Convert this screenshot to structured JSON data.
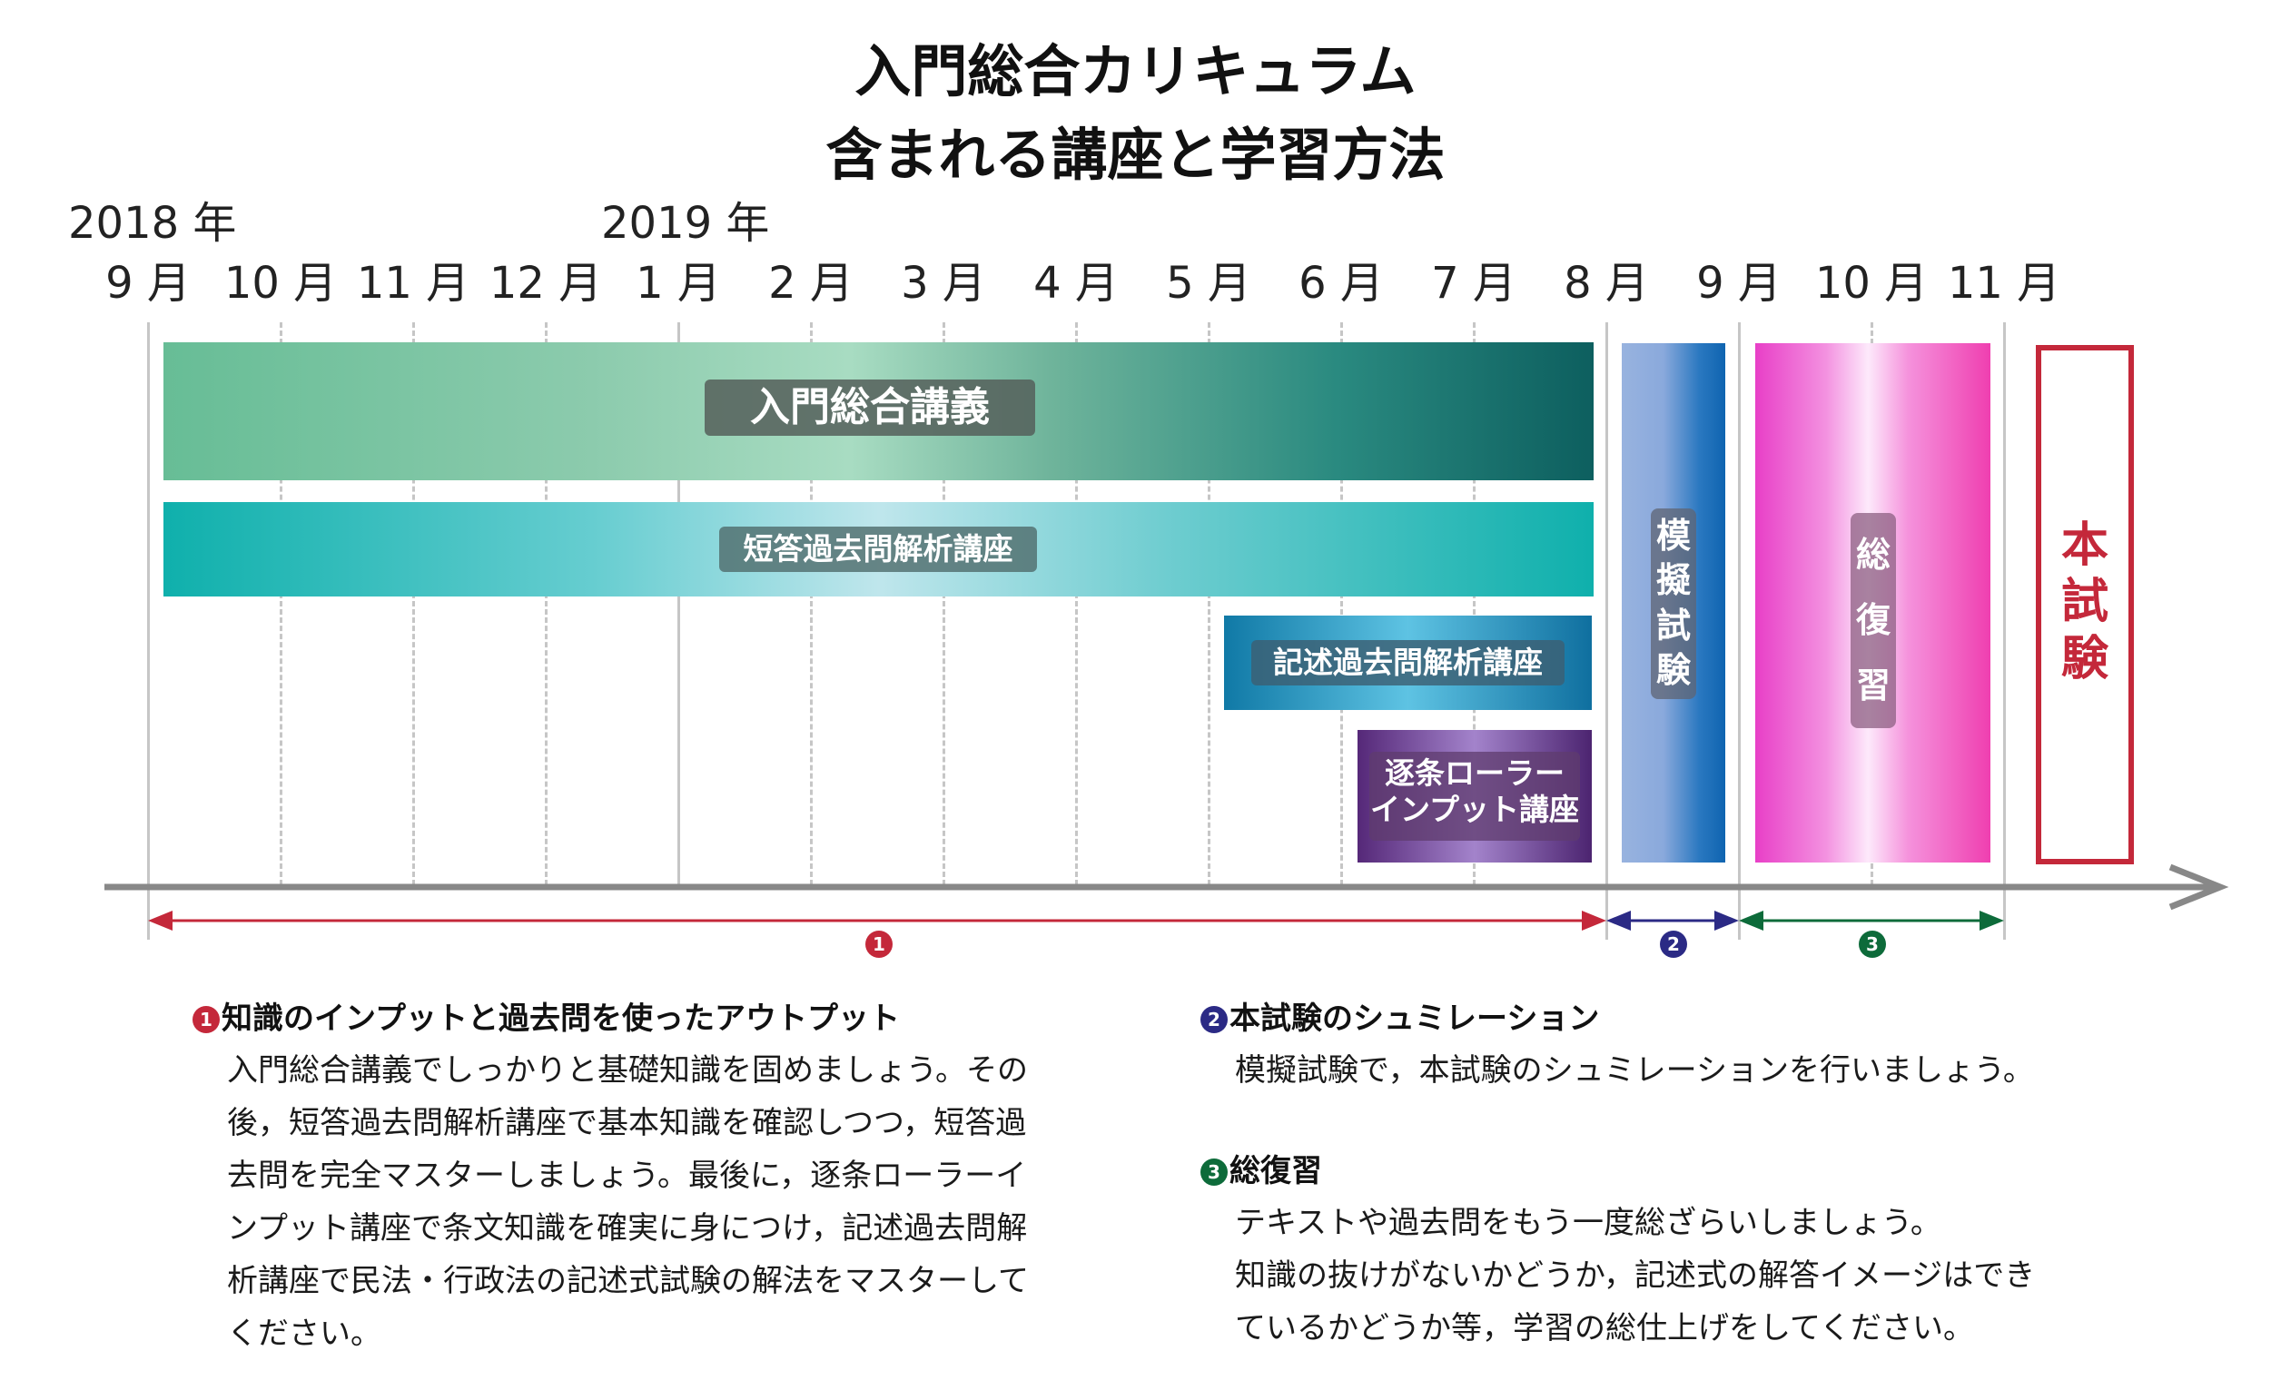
{
  "title": {
    "line1": "入門総合カリキュラム",
    "line2": "含まれる講座と学習方法"
  },
  "timeline": {
    "years": [
      "2018 年",
      "2019 年"
    ],
    "months": [
      "9 月",
      "10 月",
      "11 月",
      "12 月",
      "1 月",
      "2 月",
      "3 月",
      "4 月",
      "5 月",
      "6 月",
      "7 月",
      "8 月",
      "9 月",
      "10 月",
      "11 月"
    ]
  },
  "courses": {
    "intro": "入門総合講義",
    "short_answer": "短答過去問解析講座",
    "descriptive": "記述過去問解析講座",
    "roller": [
      "逐条ローラー",
      "インプット講座"
    ]
  },
  "phases": {
    "mock": [
      "模",
      "擬",
      "試",
      "験"
    ],
    "review": [
      "総",
      "復",
      "習"
    ],
    "exam": [
      "本",
      "試",
      "験"
    ]
  },
  "badges": {
    "one": "1",
    "two": "2",
    "three": "3"
  },
  "colors": {
    "phase1": "#c4283a",
    "phase2": "#2b2a85",
    "phase3": "#0d6b3a",
    "exam": "#c4283a"
  },
  "sections": {
    "s1": {
      "heading": "知識のインプットと過去問を使ったアウトプット",
      "lines": [
        "入門総合講義でしっかりと基礎知識を固めましょう。その",
        "後，短答過去問解析講座で基本知識を確認しつつ，短答過",
        "去問を完全マスターしましょう。最後に，逐条ローラーイ",
        "ンプット講座で条文知識を確実に身につけ，記述過去問解",
        "析講座で民法・行政法の記述式試験の解法をマスターして",
        "ください。"
      ]
    },
    "s2": {
      "heading": "本試験のシュミレーション",
      "lines": [
        "模擬試験で，本試験のシュミレーションを行いましょう。"
      ]
    },
    "s3": {
      "heading": "総復習",
      "lines": [
        "テキストや過去問をもう一度総ざらいしましょう。",
        "知識の抜けがないかどうか，記述式の解答イメージはでき",
        "ているかどうか等，学習の総仕上げをしてください。"
      ]
    }
  }
}
